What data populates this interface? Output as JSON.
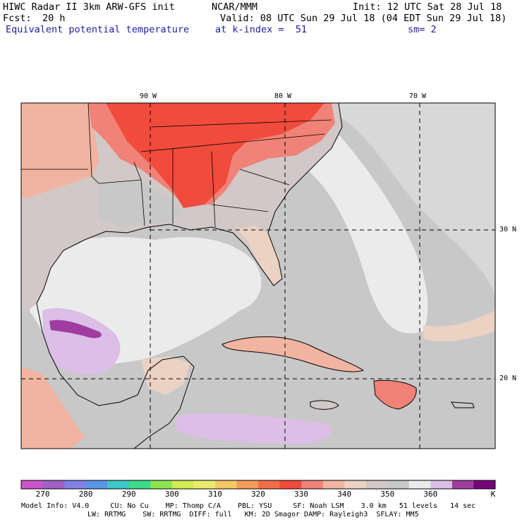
{
  "header": {
    "model": "HIWC Radar II 3km ARW-GFS init",
    "org": "NCAR/MMM",
    "init": "Init: 12 UTC Sat 28 Jul 18",
    "fcst_label": "Fcst:",
    "fcst_value": "20 h",
    "valid": "Valid: 08 UTC Sun 29 Jul 18 (04 EDT Sun 29 Jul 18)",
    "field": "Equivalent potential temperature",
    "level": "at k-index =  51",
    "smooth": "sm= 2"
  },
  "map": {
    "lon_labels": [
      "90 W",
      "80 W",
      "70 W"
    ],
    "lat_labels": [
      "30 N",
      "20 N"
    ]
  },
  "colorbar": {
    "units": "K",
    "ticks": [
      "270",
      "280",
      "290",
      "300",
      "310",
      "320",
      "330",
      "340",
      "350",
      "360"
    ],
    "colors": [
      "#cc55cc",
      "#a060c8",
      "#8080e6",
      "#5a96e6",
      "#3cc8c8",
      "#3cdc8c",
      "#8ce650",
      "#d2eb50",
      "#eaeb6e",
      "#f5c864",
      "#f59b5a",
      "#f56e46",
      "#f04b3c",
      "#f08278",
      "#f0b4a0",
      "#ebd2c3",
      "#d2c8c8",
      "#c8c8c8",
      "#ebebeb",
      "#dcbee6",
      "#a03ca0",
      "#780078"
    ]
  },
  "footer": {
    "line1": "Model Info: V4.0     CU: No Cu    MP: Thomp C/A    PBL: YSU     SF: Noah LSM    3.0 km   51 levels   14 sec",
    "line2": "LW: RRTMG    SW: RRTMG  DIFF: full   KM: 2D Smagor DAMP: Rayleigh3  SFLAY: MM5"
  }
}
